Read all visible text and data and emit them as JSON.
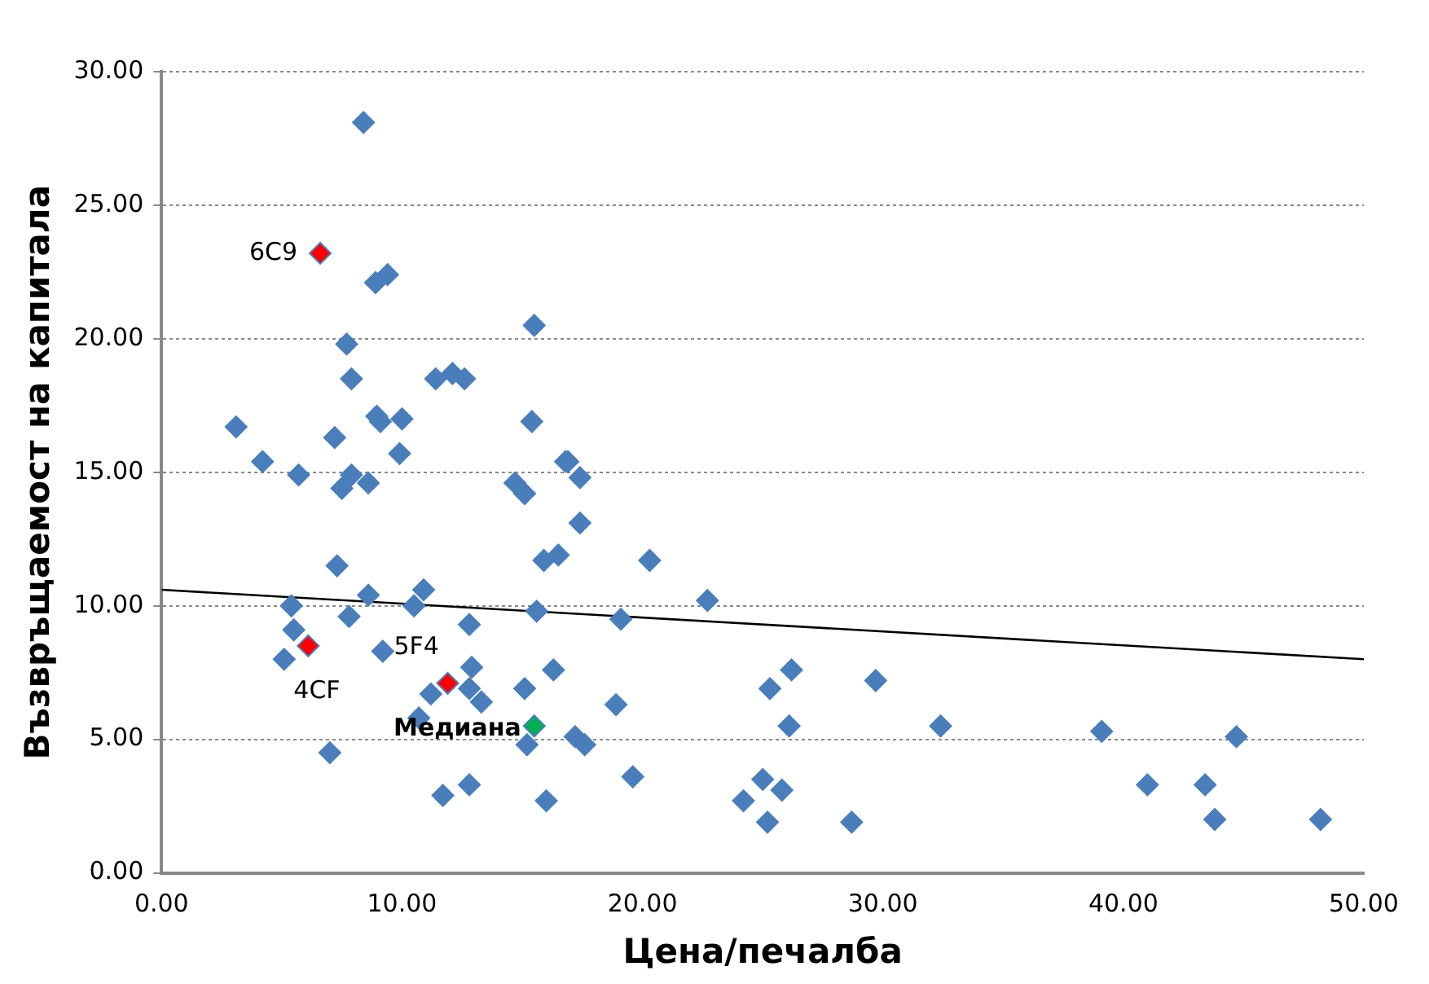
{
  "chart_data": {
    "type": "scatter",
    "xlabel": "Цена/печалба",
    "ylabel": "Възвръщаемост на капитала",
    "xlim": [
      0,
      50
    ],
    "ylim": [
      0,
      30
    ],
    "xticks": [
      {
        "value": 0,
        "label": "0.00"
      },
      {
        "value": 10,
        "label": "10.00"
      },
      {
        "value": 20,
        "label": "20.00"
      },
      {
        "value": 30,
        "label": "30.00"
      },
      {
        "value": 40,
        "label": "40.00"
      },
      {
        "value": 50,
        "label": "50.00"
      }
    ],
    "yticks": [
      {
        "value": 0,
        "label": "0.00"
      },
      {
        "value": 5,
        "label": "5.00"
      },
      {
        "value": 10,
        "label": "10.00"
      },
      {
        "value": 15,
        "label": "15.00"
      },
      {
        "value": 20,
        "label": "20.00"
      },
      {
        "value": 25,
        "label": "25.00"
      },
      {
        "value": 30,
        "label": "30.00"
      }
    ],
    "grid": "y",
    "legend": false,
    "marker": "diamond",
    "series": [
      {
        "color": "#4a7ebb",
        "x": [
          8.4,
          8.9,
          9.4,
          15.5,
          7.7,
          7.9,
          11.4,
          12.1,
          12.6,
          3.1,
          4.2,
          5.7,
          7.2,
          8.95,
          9.1,
          10.0,
          15.4,
          9.9,
          16.8,
          16.9,
          17.4,
          7.9,
          7.5,
          8.6,
          14.7,
          15.1,
          17.4,
          15.9,
          16.5,
          7.3,
          10.9,
          10.5,
          8.6,
          5.4,
          7.8,
          5.5,
          5.1,
          9.2,
          12.8,
          15.6,
          11.2,
          12.9,
          12.8,
          13.3,
          15.1,
          16.3,
          10.7,
          15.2,
          7.0,
          12.8,
          11.7,
          16.0,
          20.3,
          22.7,
          19.1,
          26.2,
          25.3,
          29.7,
          18.9,
          26.1,
          32.4,
          17.2,
          17.6,
          19.6,
          25.0,
          25.8,
          24.2,
          25.2,
          28.7,
          39.1,
          44.7,
          41.0,
          43.4,
          43.8,
          48.2
        ],
        "values": [
          28.1,
          22.1,
          22.4,
          20.5,
          19.8,
          18.5,
          18.5,
          18.7,
          18.5,
          16.7,
          15.4,
          14.9,
          16.3,
          17.1,
          16.9,
          17.0,
          16.9,
          15.7,
          15.4,
          15.4,
          14.8,
          14.9,
          14.4,
          14.6,
          14.6,
          14.2,
          13.1,
          11.7,
          11.9,
          11.5,
          10.6,
          10.0,
          10.4,
          10.0,
          9.6,
          9.1,
          8.0,
          8.3,
          9.3,
          9.8,
          6.7,
          7.7,
          6.9,
          6.4,
          6.9,
          7.6,
          5.8,
          4.8,
          4.5,
          3.3,
          2.9,
          2.7,
          11.7,
          10.2,
          9.5,
          7.6,
          6.9,
          7.2,
          6.3,
          5.5,
          5.5,
          5.1,
          4.8,
          3.6,
          3.5,
          3.1,
          2.7,
          1.9,
          1.9,
          5.3,
          5.1,
          3.3,
          3.3,
          2.0,
          2.0
        ]
      },
      {
        "color": "#ff0000",
        "x": [
          6.6,
          6.1,
          11.9
        ],
        "values": [
          23.2,
          8.5,
          7.1
        ]
      },
      {
        "color": "#00b050",
        "x": [
          15.5
        ],
        "values": [
          5.5
        ]
      },
      {
        "type": "line",
        "color": "#000000",
        "x": [
          0,
          50
        ],
        "values": [
          10.6,
          8.0
        ],
        "marker": "none"
      }
    ],
    "annotations": [
      {
        "text": "6C9",
        "x": 6.6,
        "y": 23.2
      },
      {
        "text": "4CF",
        "x": 6.1,
        "y": 8.5
      },
      {
        "text": "5F4",
        "x": 11.9,
        "y": 7.1
      },
      {
        "text": "Медиана",
        "x": 15.5,
        "y": 5.5
      }
    ]
  }
}
